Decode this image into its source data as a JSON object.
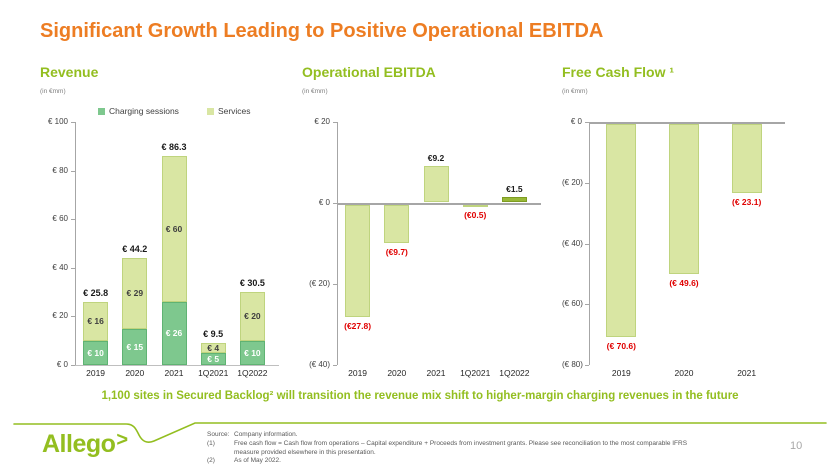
{
  "title": "Significant Growth Leading to Positive Operational EBITDA",
  "message": "1,100 sites in Secured Backlog² will transition the revenue mix shift to higher-margin charging revenues in the future",
  "colors": {
    "title_orange": "#ED7D23",
    "brand_green": "#93BE20",
    "light_green": "#D9E6A3",
    "medium_green": "#7EC88E",
    "olive_green": "#98B837",
    "negative_red": "#E00000",
    "axis_gray": "#A6A6A6",
    "text_dark": "#262626",
    "note_gray": "#595959"
  },
  "chart_data": [
    {
      "type": "bar",
      "subtype": "stacked",
      "header": "Revenue",
      "unit": "(in €mm)",
      "legend_position": "top",
      "grid": false,
      "categories": [
        "2019",
        "2020",
        "2021",
        "1Q2021",
        "1Q2022"
      ],
      "series": [
        {
          "name": "Charging sessions",
          "color": "#7EC88E",
          "border": "#5FB373",
          "label_color": "#FFFFFF",
          "values": [
            10,
            15,
            26,
            5,
            10
          ],
          "labels": [
            "€ 10",
            "€ 15",
            "€ 26",
            "€ 5",
            "€ 10"
          ]
        },
        {
          "name": "Services",
          "color": "#D9E6A3",
          "border": "#BFD47E",
          "label_color": "#3F3F3F",
          "values": [
            16,
            29,
            60,
            4,
            20
          ],
          "labels": [
            "€ 16",
            "€ 29",
            "€ 60",
            "€ 4",
            "€ 20"
          ]
        }
      ],
      "totals": [
        25.8,
        44.2,
        86.3,
        9.5,
        30.5
      ],
      "total_labels": [
        "€ 25.8",
        "€ 44.2",
        "€ 86.3",
        "€ 9.5",
        "€ 30.5"
      ],
      "ylim": [
        0,
        100
      ],
      "yticks": [
        {
          "v": 100,
          "label": "€ 100"
        },
        {
          "v": 80,
          "label": "€ 80"
        },
        {
          "v": 60,
          "label": "€ 60"
        },
        {
          "v": 40,
          "label": "€ 40"
        },
        {
          "v": 20,
          "label": "€ 20"
        },
        {
          "v": 0,
          "label": "€ 0"
        }
      ]
    },
    {
      "type": "bar",
      "header": "Operational EBITDA",
      "unit": "(in €mm)",
      "grid": false,
      "categories": [
        "2019",
        "2020",
        "2021",
        "1Q2021",
        "1Q2022"
      ],
      "values": [
        -27.8,
        -9.7,
        9.2,
        -0.5,
        1.5
      ],
      "labels": [
        "(€27.8)",
        "(€9.7)",
        "€9.2",
        "(€0.5)",
        "€1.5"
      ],
      "label_colors": [
        "#E00000",
        "#E00000",
        "#1A1A1A",
        "#E00000",
        "#1A1A1A"
      ],
      "bar_colors": [
        "#D9E6A3",
        "#D9E6A3",
        "#D9E6A3",
        "#D9E6A3",
        "#98B837"
      ],
      "bar_borders": [
        "#BFD47E",
        "#BFD47E",
        "#BFD47E",
        "#BFD47E",
        "#7E9C22"
      ],
      "ylim": [
        -40,
        20
      ],
      "yticks": [
        {
          "v": 20,
          "label": "€ 20"
        },
        {
          "v": 0,
          "label": "€ 0"
        },
        {
          "v": -20,
          "label": "(€ 20)"
        },
        {
          "v": -40,
          "label": "(€ 40)"
        }
      ]
    },
    {
      "type": "bar",
      "header": "Free Cash Flow ¹",
      "unit": "(in €mm)",
      "grid": false,
      "categories": [
        "2019",
        "2020",
        "2021"
      ],
      "values": [
        -70.6,
        -49.6,
        -23.1
      ],
      "labels": [
        "(€ 70.6)",
        "(€ 49.6)",
        "(€ 23.1)"
      ],
      "label_colors": [
        "#E00000",
        "#E00000",
        "#E00000"
      ],
      "bar_colors": [
        "#D9E6A3",
        "#D9E6A3",
        "#D9E6A3"
      ],
      "bar_borders": [
        "#BFD47E",
        "#BFD47E",
        "#BFD47E"
      ],
      "ylim": [
        -80,
        0
      ],
      "yticks": [
        {
          "v": 0,
          "label": "€ 0"
        },
        {
          "v": -20,
          "label": "(€ 20)"
        },
        {
          "v": -40,
          "label": "(€ 40)"
        },
        {
          "v": -60,
          "label": "(€ 60)"
        },
        {
          "v": -80,
          "label": "(€ 80)"
        }
      ]
    }
  ],
  "footer": {
    "logo_text": "Allego",
    "logo_chevron": ">",
    "page_number": "10",
    "notes": [
      {
        "label": "Source:",
        "text": "Company information."
      },
      {
        "label": "(1)",
        "text": "Free cash flow = Cash flow from operations – Capital expenditure + Proceeds from investment grants. Please see reconciliation to the most comparable IFRS measure provided elsewhere in this presentation."
      },
      {
        "label": "(2)",
        "text": "As of May 2022."
      }
    ]
  }
}
